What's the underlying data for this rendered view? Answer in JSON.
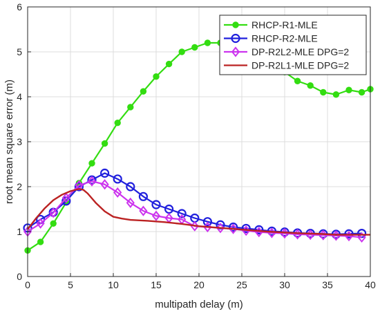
{
  "chart_data": {
    "type": "line",
    "title": "",
    "xlabel": "multipath delay (m)",
    "ylabel": "root mean square error (m)",
    "xlim": [
      0,
      40
    ],
    "ylim": [
      0,
      6
    ],
    "xticks": [
      0,
      5,
      10,
      15,
      20,
      25,
      30,
      35,
      40
    ],
    "yticks": [
      0,
      1,
      2,
      3,
      4,
      5,
      6
    ],
    "grid": true,
    "legend_position": "top-right",
    "series": [
      {
        "name": "RHCP-R1-MLE",
        "color": "#33dd11",
        "marker": "filled-circle",
        "x": [
          0,
          1.5,
          3,
          4.5,
          6,
          7.5,
          9,
          10.5,
          12,
          13.5,
          15,
          16.5,
          18,
          19.5,
          21,
          22.5,
          24,
          25.5,
          27,
          28.5,
          30,
          31.5,
          33,
          34.5,
          36,
          37.5,
          39,
          40
        ],
        "y": [
          0.58,
          0.77,
          1.18,
          1.65,
          2.08,
          2.52,
          2.96,
          3.42,
          3.77,
          4.12,
          4.45,
          4.73,
          5.0,
          5.1,
          5.2,
          5.2,
          5.15,
          5.05,
          4.9,
          4.73,
          4.55,
          4.35,
          4.25,
          4.1,
          4.05,
          4.15,
          4.1,
          4.17
        ]
      },
      {
        "name": "RHCP-R2-MLE",
        "color": "#1f1fdd",
        "marker": "open-circle",
        "x": [
          0,
          1.5,
          3,
          4.5,
          6,
          7.5,
          9,
          10.5,
          12,
          13.5,
          15,
          16.5,
          18,
          19.5,
          21,
          22.5,
          24,
          25.5,
          27,
          28.5,
          30,
          31.5,
          33,
          34.5,
          36,
          37.5,
          39
        ],
        "y": [
          1.08,
          1.27,
          1.43,
          1.68,
          2.0,
          2.15,
          2.3,
          2.17,
          2.0,
          1.78,
          1.6,
          1.5,
          1.4,
          1.3,
          1.22,
          1.15,
          1.1,
          1.07,
          1.04,
          1.01,
          0.99,
          0.97,
          0.96,
          0.95,
          0.94,
          0.95,
          0.96
        ]
      },
      {
        "name": "DP-R2L2-MLE DPG=2",
        "color": "#cc33ee",
        "marker": "open-diamond",
        "x": [
          0,
          1.5,
          3,
          4.5,
          6,
          7.5,
          9,
          10.5,
          12,
          13.5,
          15,
          16.5,
          18,
          19.5,
          21,
          22.5,
          24,
          25.5,
          27,
          28.5,
          30,
          31.5,
          33,
          34.5,
          36,
          37.5,
          39
        ],
        "y": [
          1.0,
          1.18,
          1.42,
          1.75,
          2.03,
          2.12,
          2.05,
          1.87,
          1.64,
          1.46,
          1.35,
          1.3,
          1.27,
          1.12,
          1.1,
          1.08,
          1.06,
          1.02,
          0.99,
          0.97,
          0.96,
          0.94,
          0.93,
          0.92,
          0.91,
          0.9,
          0.87
        ]
      },
      {
        "name": "DP-R2L1-MLE DPG=2",
        "color": "#bb2222",
        "marker": "none",
        "x": [
          0,
          1,
          2,
          3,
          4,
          5,
          6,
          6.5,
          7,
          8,
          9,
          10,
          11,
          12,
          14,
          16,
          18,
          20,
          22,
          24,
          26,
          28,
          30,
          32,
          34,
          36,
          38,
          40
        ],
        "y": [
          1.05,
          1.3,
          1.52,
          1.7,
          1.82,
          1.9,
          1.95,
          1.93,
          1.85,
          1.63,
          1.45,
          1.33,
          1.29,
          1.26,
          1.24,
          1.21,
          1.17,
          1.12,
          1.09,
          1.06,
          1.03,
          1.0,
          0.98,
          0.96,
          0.95,
          0.93,
          0.93,
          0.93
        ]
      }
    ]
  }
}
